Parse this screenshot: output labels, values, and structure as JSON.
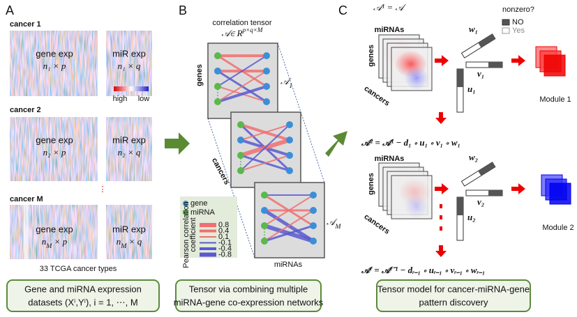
{
  "panel_a": {
    "label": "A",
    "cancers": [
      {
        "name": "cancer 1",
        "gene_title": "gene exp",
        "gene_dim": "n₁ × p",
        "mir_title": "miR exp",
        "mir_dim": "n₁ × q"
      },
      {
        "name": "cancer 2",
        "gene_title": "gene exp",
        "gene_dim": "n₂ × p",
        "mir_title": "miR exp",
        "mir_dim": "n₂ × q"
      },
      {
        "name": "cancer M",
        "gene_title": "gene exp",
        "gene_dim": {
          "base": "n",
          "sub": "M",
          "tail": " × p"
        },
        "mir_title": "miR exp",
        "mir_dim": {
          "base": "n",
          "sub": "M",
          "tail": " × q"
        }
      }
    ],
    "colorbar": {
      "high": "high",
      "low": "low"
    },
    "ellipsis": "⋮",
    "caption": "33 TCGA cancer types",
    "summary": [
      "Gene and miRNA expression",
      "datasets (Xⁱ,Yⁱ), i = 1, ⋯, M"
    ]
  },
  "panel_b": {
    "label": "B",
    "title": "correlation tensor",
    "tensor": {
      "base": "𝒜∈ R",
      "sup": "p×q×M"
    },
    "genes": "genes",
    "slice_first": {
      "base": "𝒜",
      "sub": "1"
    },
    "cancers": "cancers",
    "slice_last": {
      "base": "𝒜",
      "sub": "M"
    },
    "mirnas": "miRNAs",
    "legend": {
      "gene": "gene",
      "mirna": "miRNA",
      "title": [
        "Pearson correlation",
        "coefficient"
      ],
      "levels": [
        "0.8",
        "0.4",
        "0.1",
        "-0.1",
        "-0.4",
        "-0.8"
      ]
    },
    "summary": [
      "Tensor via combining multiple",
      "miRNA-gene co-expression networks"
    ]
  },
  "panel_c": {
    "label": "C",
    "first": "𝒜¹ = 𝒜",
    "mirnas": [
      "miRNAs",
      "miRNAs"
    ],
    "genes": [
      "genes",
      "genes"
    ],
    "cancers": [
      "cancers",
      "cancers"
    ],
    "w": [
      "w₁",
      "w₂"
    ],
    "v": [
      "v₁",
      "v₂"
    ],
    "u": [
      "u₁",
      "u₂"
    ],
    "nonzero": "nonzero?",
    "no": "NO",
    "yes": "Yes",
    "modules": [
      "Module 1",
      "Module 2"
    ],
    "second": "𝒜² = 𝒜¹ − d₁ ∘ u₁ ∘ v₁ ∘ w₁",
    "general": "𝒜ʳ = 𝒜ʳ⁻¹ − dᵣ₋₁ ∘ uᵣ₋₁ ∘ vᵣ₋₁ ∘ wᵣ₋₁",
    "summary": [
      "Tensor model for cancer-miRNA-gene",
      "pattern discovery"
    ]
  }
}
